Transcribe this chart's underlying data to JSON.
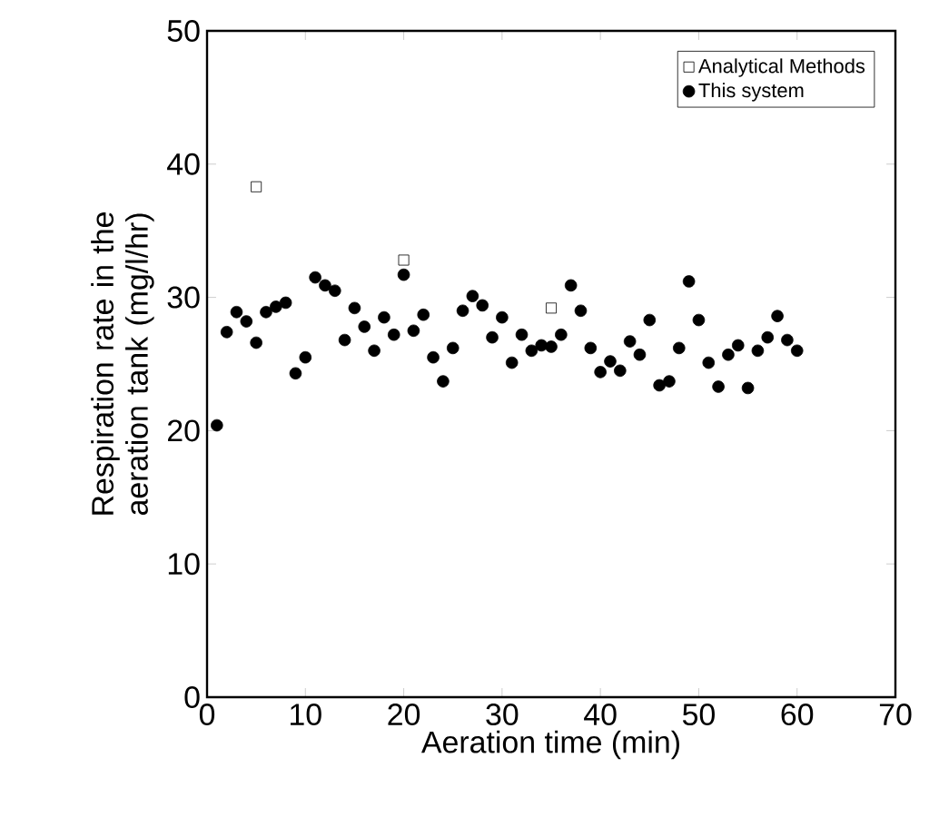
{
  "chart_data": {
    "type": "scatter",
    "xlabel": "Aeration time (min)",
    "ylabel": "Respiration rate in the aeration tank (mg/l/hr)",
    "xlim": [
      0,
      70
    ],
    "ylim": [
      0,
      50
    ],
    "xticks": [
      0,
      10,
      20,
      30,
      40,
      50,
      60,
      70
    ],
    "yticks": [
      0,
      10,
      20,
      30,
      40,
      50
    ],
    "grid": false,
    "legend": "top right",
    "series": [
      {
        "name": "Analytical Methods",
        "color": "#000000",
        "marker": "square",
        "x": [
          5,
          20,
          35
        ],
        "values": [
          38.3,
          32.8,
          29.2
        ]
      },
      {
        "name": "This system",
        "color": "#000000",
        "marker": "circle",
        "x": [
          1,
          2,
          3,
          4,
          5,
          6,
          7,
          8,
          9,
          10,
          11,
          12,
          13,
          14,
          15,
          16,
          17,
          18,
          19,
          20,
          21,
          22,
          23,
          24,
          25,
          26,
          27,
          28,
          29,
          30,
          31,
          32,
          33,
          34,
          35,
          36,
          37,
          38,
          39,
          40,
          41,
          42,
          43,
          44,
          45,
          46,
          47,
          48,
          49,
          50,
          51,
          52,
          53,
          54,
          55,
          56,
          57,
          58,
          59,
          60
        ],
        "values": [
          20.4,
          27.4,
          28.9,
          28.2,
          26.6,
          28.9,
          29.3,
          29.6,
          24.3,
          25.5,
          31.5,
          30.9,
          30.5,
          26.8,
          29.2,
          27.8,
          26.0,
          28.5,
          27.2,
          31.7,
          27.5,
          28.7,
          25.5,
          23.7,
          26.2,
          29.0,
          30.1,
          29.4,
          27.0,
          28.5,
          25.1,
          27.2,
          26.0,
          26.4,
          26.3,
          27.2,
          30.9,
          29.0,
          26.2,
          24.4,
          25.2,
          24.5,
          26.7,
          25.7,
          28.3,
          23.4,
          23.7,
          26.2,
          31.2,
          28.3,
          25.1,
          23.3,
          25.7,
          26.4,
          23.2,
          26.0,
          27.0,
          28.6,
          26.8,
          26.0
        ]
      }
    ]
  }
}
